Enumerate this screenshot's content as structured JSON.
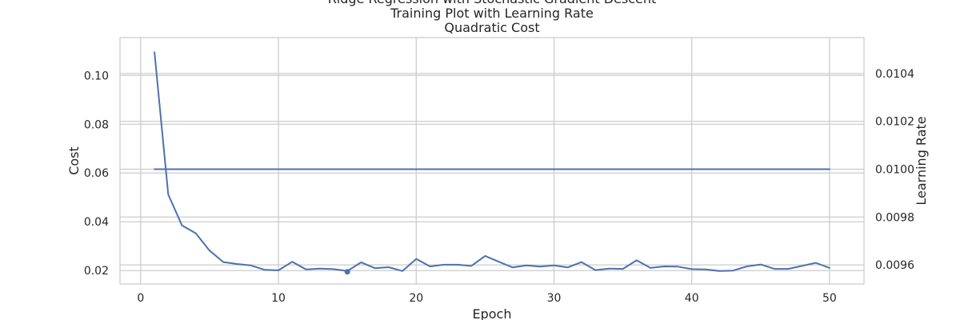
{
  "chart_data": {
    "type": "line",
    "title": [
      "Ridge Regression with Stochastic Gradient Descent",
      "Training Plot with Learning Rate",
      "Quadratic Cost"
    ],
    "xlabel": "Epoch",
    "ylabel": "Cost",
    "y2label": "Learning Rate",
    "xlim": [
      -1.5,
      52.5
    ],
    "ylim": [
      0.0145,
      0.1155
    ],
    "y2lim": [
      0.00952,
      0.01055
    ],
    "x_ticks": [
      0,
      10,
      20,
      30,
      40,
      50
    ],
    "x_tick_labels": [
      "0",
      "10",
      "20",
      "30",
      "40",
      "50"
    ],
    "y_ticks": [
      0.02,
      0.04,
      0.06,
      0.08,
      0.1
    ],
    "y_tick_labels": [
      "0.02",
      "0.04",
      "0.06",
      "0.08",
      "0.10"
    ],
    "y2_ticks": [
      0.0096,
      0.0098,
      0.01,
      0.0102,
      0.0104
    ],
    "y2_tick_labels": [
      "0.0096",
      "0.0098",
      "0.0100",
      "0.0102",
      "0.0104"
    ],
    "grid": true,
    "colors": {
      "line": "#4c72b0",
      "grid": "#cccccc",
      "text": "#262626"
    },
    "series": [
      {
        "axis": "left",
        "x": [
          1,
          2,
          3,
          4,
          5,
          6,
          7,
          8,
          9,
          10,
          11,
          12,
          13,
          14,
          15,
          16,
          17,
          18,
          19,
          20,
          21,
          22,
          23,
          24,
          25,
          26,
          27,
          28,
          29,
          30,
          31,
          32,
          33,
          34,
          35,
          36,
          37,
          38,
          39,
          40,
          41,
          42,
          43,
          44,
          45,
          46,
          47,
          48,
          49,
          50
        ],
        "values": [
          0.1095,
          0.0512,
          0.0385,
          0.0353,
          0.0282,
          0.0235,
          0.0227,
          0.0221,
          0.0203,
          0.0201,
          0.0236,
          0.0205,
          0.0208,
          0.0206,
          0.0198,
          0.0234,
          0.021,
          0.0214,
          0.0198,
          0.0248,
          0.0217,
          0.0224,
          0.0224,
          0.0219,
          0.026,
          0.0236,
          0.0213,
          0.0221,
          0.0216,
          0.0221,
          0.0213,
          0.0235,
          0.0202,
          0.0208,
          0.0207,
          0.0242,
          0.0211,
          0.0217,
          0.0216,
          0.0206,
          0.0205,
          0.0198,
          0.02,
          0.0217,
          0.0225,
          0.0207,
          0.0207,
          0.0219,
          0.0232,
          0.0211
        ]
      },
      {
        "axis": "right",
        "x": [
          1,
          50
        ],
        "values": [
          0.01,
          0.01
        ]
      }
    ],
    "markers": [
      {
        "x": 15,
        "y": 0.0195
      }
    ]
  }
}
